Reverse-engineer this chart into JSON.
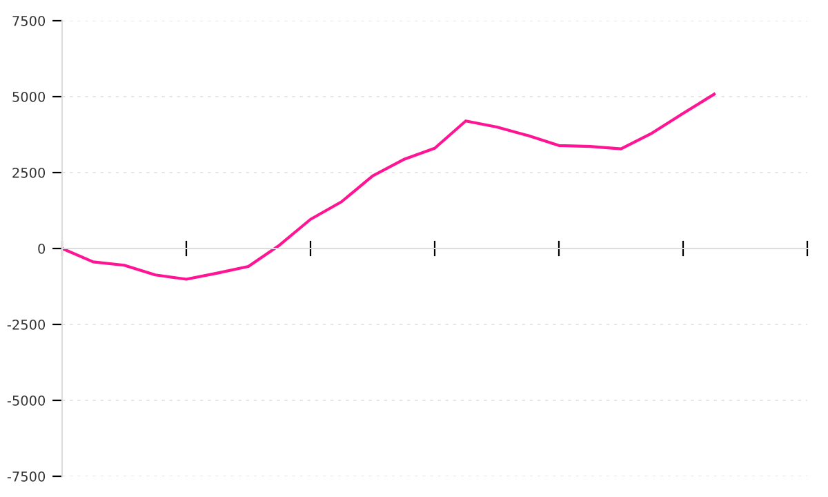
{
  "chart_data": {
    "type": "line",
    "categories": [
      null,
      null,
      null,
      null,
      null,
      null,
      null,
      null,
      null,
      null,
      null,
      null,
      null,
      null,
      null,
      null,
      null,
      null,
      null,
      null,
      null,
      null,
      null,
      null,
      null
    ],
    "series": [
      {
        "color": "#ff1493",
        "values": [
          0,
          -440,
          -550,
          -870,
          -1010,
          -810,
          -590,
          110,
          960,
          1540,
          2390,
          2930,
          3300,
          4200,
          4000,
          3720,
          3390,
          3360,
          3280,
          3800,
          4450,
          5080,
          null,
          null,
          null
        ]
      }
    ],
    "ylim": [
      -7500,
      7500
    ],
    "yticks": [
      -7500,
      -5000,
      -2500,
      0,
      2500,
      5000,
      7500
    ],
    "grid": "y",
    "marker": "none",
    "line_style": "solid"
  }
}
